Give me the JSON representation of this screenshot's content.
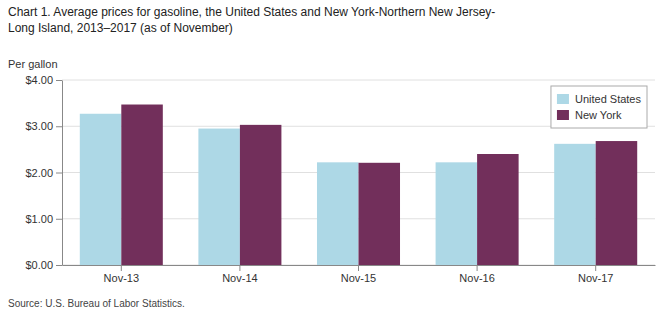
{
  "chart_data": {
    "type": "bar",
    "title": "Chart 1. Average prices for gasoline, the United States and New York-Northern New Jersey-",
    "subtitle": "Long Island, 2013–2017 (as of November)",
    "y_label": "Per gallon",
    "annotations": [
      "Source: U.S. Bureau of Labor Statistics."
    ],
    "categories": [
      "Nov-13",
      "Nov-14",
      "Nov-15",
      "Nov-16",
      "Nov-17"
    ],
    "series": [
      {
        "name": "United States",
        "color": "#ADD8E6",
        "values": [
          3.27,
          2.95,
          2.22,
          2.22,
          2.62
        ]
      },
      {
        "name": "New York",
        "color": "#722F5B",
        "values": [
          3.47,
          3.03,
          2.21,
          2.4,
          2.68
        ]
      }
    ],
    "ylim": [
      0,
      4
    ],
    "yticks": [
      {
        "value": 0,
        "label": "$0.00"
      },
      {
        "value": 1,
        "label": "$1.00"
      },
      {
        "value": 2,
        "label": "$2.00"
      },
      {
        "value": 3,
        "label": "$3.00"
      },
      {
        "value": 4,
        "label": "$4.00"
      }
    ],
    "grid": true,
    "legend": "upper right"
  }
}
